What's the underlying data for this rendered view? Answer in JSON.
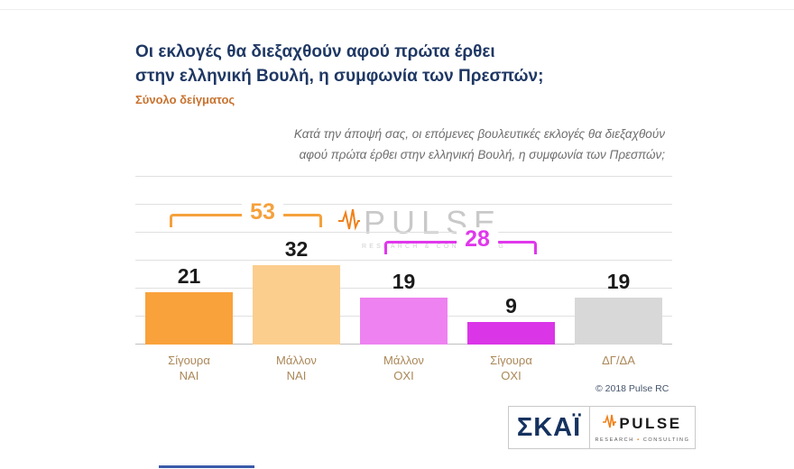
{
  "header": {
    "title_line1": "Οι εκλογές θα διεξαχθούν αφού πρώτα έρθει",
    "title_line2": "στην ελληνική Βουλή, η συμφωνία των Πρεσπών;",
    "subtitle": "Σύνολο δείγματος"
  },
  "question": {
    "line1": "Κατά την άποψή σας, οι επόμενες βουλευτικές εκλογές θα διεξαχθούν",
    "line2": "αφού πρώτα έρθει στην ελληνική Βουλή, η συμφωνία των Πρεσπών;"
  },
  "chart_data": {
    "type": "bar",
    "title": "Οι εκλογές θα διεξαχθούν αφού πρώτα έρθει στην ελληνική Βουλή, η συμφωνία των Πρεσπών;",
    "categories": [
      [
        "Σίγουρα",
        "ΝΑΙ"
      ],
      [
        "Μάλλον",
        "ΝΑΙ"
      ],
      [
        "Μάλλον",
        "ΟΧΙ"
      ],
      [
        "Σίγουρα",
        "ΟΧΙ"
      ],
      [
        "ΔΓ/ΔΑ"
      ]
    ],
    "values": [
      21,
      32,
      19,
      9,
      19
    ],
    "bar_colors": [
      "#F9A23B",
      "#FBCE8E",
      "#EE82F0",
      "#DB35E8",
      "#D8D8D8"
    ],
    "category_label_color": "#AB8758",
    "brackets": [
      {
        "label": "53",
        "from": 0,
        "to": 1,
        "color": "#F5A13C"
      },
      {
        "label": "28",
        "from": 2,
        "to": 3,
        "color": "#E038EC"
      }
    ],
    "ylim": [
      0,
      35
    ],
    "grid": true,
    "legend": "none"
  },
  "watermark": {
    "name": "PULSE",
    "sub": "RESEARCH & CONSULTING"
  },
  "footer": {
    "copyright": "© 2018 Pulse RC"
  },
  "logos": {
    "skai_label": "ΣΚΑΪ",
    "pulse_label": "PULSE",
    "pulse_sub_left": "RESEARCH",
    "pulse_sub_right": "CONSULTING"
  }
}
